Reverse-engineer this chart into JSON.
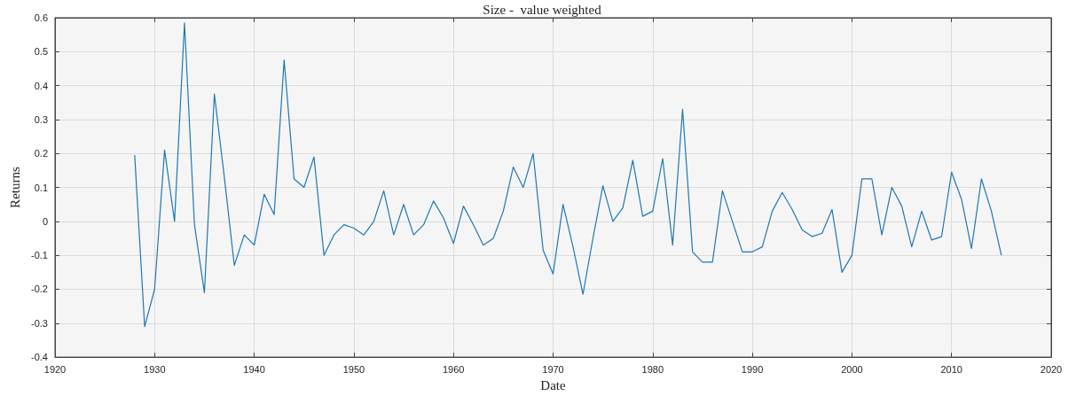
{
  "chart_data": {
    "type": "line",
    "title": "Size -  value weighted",
    "xlabel": "Date",
    "ylabel": "Returns",
    "x": [
      1928,
      1929,
      1930,
      1931,
      1932,
      1933,
      1934,
      1935,
      1936,
      1937,
      1938,
      1939,
      1940,
      1941,
      1942,
      1943,
      1944,
      1945,
      1946,
      1947,
      1948,
      1949,
      1950,
      1951,
      1952,
      1953,
      1954,
      1955,
      1956,
      1957,
      1958,
      1959,
      1960,
      1961,
      1962,
      1963,
      1964,
      1965,
      1966,
      1967,
      1968,
      1969,
      1970,
      1971,
      1972,
      1973,
      1974,
      1975,
      1976,
      1977,
      1978,
      1979,
      1980,
      1981,
      1982,
      1983,
      1984,
      1985,
      1986,
      1987,
      1988,
      1989,
      1990,
      1991,
      1992,
      1993,
      1994,
      1995,
      1996,
      1997,
      1998,
      1999,
      2000,
      2001,
      2002,
      2003,
      2004,
      2005,
      2006,
      2007,
      2008,
      2009,
      2010,
      2011,
      2012,
      2013,
      2014,
      2015
    ],
    "series": [
      {
        "color": "#1f77b4",
        "values": [
          0.195,
          -0.31,
          -0.2,
          0.21,
          0.0,
          0.585,
          -0.01,
          -0.21,
          0.375,
          0.13,
          -0.13,
          -0.04,
          -0.07,
          0.08,
          0.02,
          0.475,
          0.125,
          0.1,
          0.19,
          -0.1,
          -0.04,
          -0.01,
          -0.02,
          -0.04,
          0.0,
          0.09,
          -0.04,
          0.05,
          -0.04,
          -0.01,
          0.06,
          0.01,
          -0.065,
          0.045,
          -0.01,
          -0.07,
          -0.05,
          0.03,
          0.16,
          0.1,
          0.2,
          -0.085,
          -0.155,
          0.05,
          -0.075,
          -0.215,
          -0.05,
          0.105,
          0.0,
          0.04,
          0.18,
          0.015,
          0.03,
          0.185,
          -0.07,
          0.33,
          -0.09,
          -0.12,
          -0.12,
          0.09,
          0.0,
          -0.09,
          -0.09,
          -0.075,
          0.03,
          0.085,
          0.035,
          -0.025,
          -0.045,
          -0.035,
          0.035,
          -0.15,
          -0.1,
          0.125,
          0.125,
          -0.04,
          0.1,
          0.045,
          -0.075,
          0.03,
          -0.055,
          -0.045,
          0.145,
          0.065,
          -0.08,
          0.125,
          0.03,
          -0.1
        ]
      }
    ],
    "xlim": [
      1920,
      2020
    ],
    "xticks": [
      1920,
      1930,
      1940,
      1950,
      1960,
      1970,
      1980,
      1990,
      2000,
      2010,
      2020
    ],
    "ylim": [
      -0.4,
      0.6
    ],
    "yticks": [
      -0.4,
      -0.3,
      -0.2,
      -0.1,
      0,
      0.1,
      0.2,
      0.3,
      0.4,
      0.5,
      0.6
    ],
    "grid": true,
    "marker": "none",
    "line_style": "solid"
  }
}
